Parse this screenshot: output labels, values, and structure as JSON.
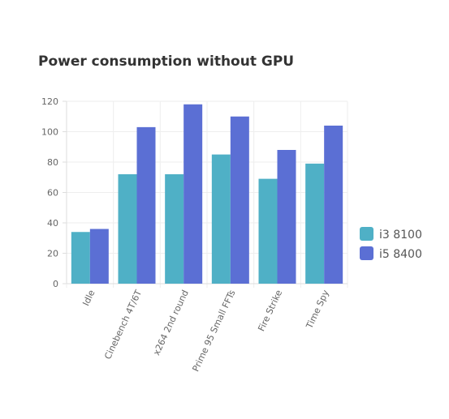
{
  "chart_data": {
    "type": "bar",
    "title": "Power consumption without GPU",
    "categories": [
      "Idle",
      "Cinebench 4T/6T",
      "x264 2nd round",
      "Prime 95 Small FFTs",
      "Fire Strike",
      "Time Spy"
    ],
    "series": [
      {
        "name": "i3 8100",
        "values": [
          34,
          72,
          72,
          85,
          69,
          79
        ],
        "color": "#4fb0c6"
      },
      {
        "name": "i5 8400",
        "values": [
          36,
          103,
          118,
          110,
          88,
          104
        ],
        "color": "#5b6fd4"
      }
    ],
    "ylim": [
      0,
      120
    ],
    "yticks": [
      0,
      20,
      40,
      60,
      80,
      100,
      120
    ],
    "xlabel": "",
    "ylabel": "",
    "grid": true,
    "legend_position": "right"
  }
}
